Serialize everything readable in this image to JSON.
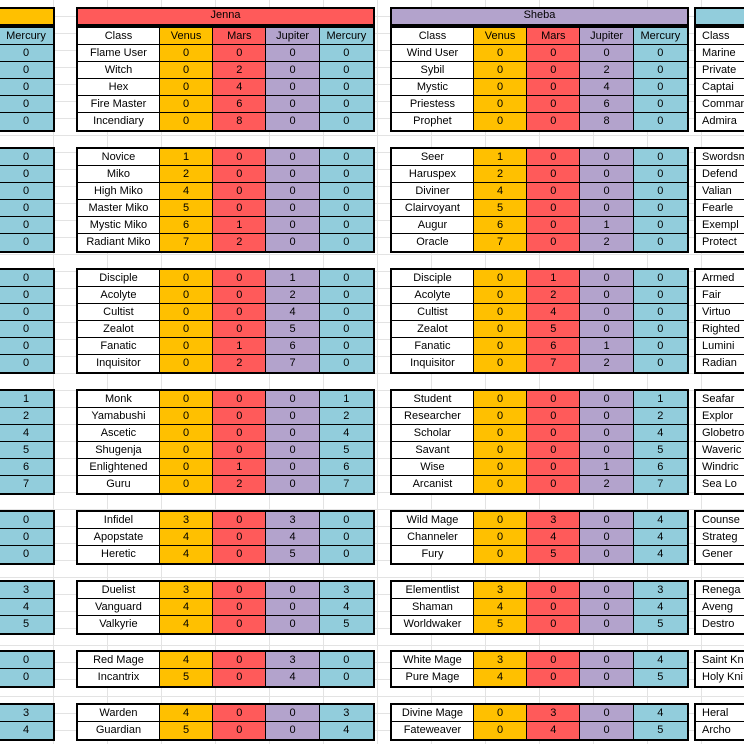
{
  "colors": {
    "venus": "#ffc000",
    "mars": "#ff5a5a",
    "jupiter": "#b3a3cc",
    "mercury": "#92cddc"
  },
  "headers": {
    "jenna": "Jenna",
    "sheba": "Sheba",
    "columns": [
      "Class",
      "Venus",
      "Mars",
      "Jupiter",
      "Mercury"
    ],
    "left_mercury": "Mercury",
    "right_class": "Class"
  },
  "left_mercury": [
    [
      "0",
      "0",
      "0",
      "0",
      "0"
    ],
    [
      "0",
      "0",
      "0",
      "0",
      "0",
      "0"
    ],
    [
      "0",
      "0",
      "0",
      "0",
      "0",
      "0"
    ],
    [
      "1",
      "2",
      "4",
      "5",
      "6",
      "7"
    ],
    [
      "0",
      "0",
      "0"
    ],
    [
      "3",
      "4",
      "5"
    ],
    [
      "0",
      "0"
    ],
    [
      "3",
      "4"
    ]
  ],
  "jenna": [
    [
      [
        "Flame User",
        "0",
        "0",
        "0",
        "0"
      ],
      [
        "Witch",
        "0",
        "2",
        "0",
        "0"
      ],
      [
        "Hex",
        "0",
        "4",
        "0",
        "0"
      ],
      [
        "Fire Master",
        "0",
        "6",
        "0",
        "0"
      ],
      [
        "Incendiary",
        "0",
        "8",
        "0",
        "0"
      ]
    ],
    [
      [
        "Novice",
        "1",
        "0",
        "0",
        "0"
      ],
      [
        "Miko",
        "2",
        "0",
        "0",
        "0"
      ],
      [
        "High Miko",
        "4",
        "0",
        "0",
        "0"
      ],
      [
        "Master Miko",
        "5",
        "0",
        "0",
        "0"
      ],
      [
        "Mystic Miko",
        "6",
        "1",
        "0",
        "0"
      ],
      [
        "Radiant Miko",
        "7",
        "2",
        "0",
        "0"
      ]
    ],
    [
      [
        "Disciple",
        "0",
        "0",
        "1",
        "0"
      ],
      [
        "Acolyte",
        "0",
        "0",
        "2",
        "0"
      ],
      [
        "Cultist",
        "0",
        "0",
        "4",
        "0"
      ],
      [
        "Zealot",
        "0",
        "0",
        "5",
        "0"
      ],
      [
        "Fanatic",
        "0",
        "1",
        "6",
        "0"
      ],
      [
        "Inquisitor",
        "0",
        "2",
        "7",
        "0"
      ]
    ],
    [
      [
        "Monk",
        "0",
        "0",
        "0",
        "1"
      ],
      [
        "Yamabushi",
        "0",
        "0",
        "0",
        "2"
      ],
      [
        "Ascetic",
        "0",
        "0",
        "0",
        "4"
      ],
      [
        "Shugenja",
        "0",
        "0",
        "0",
        "5"
      ],
      [
        "Enlightened",
        "0",
        "1",
        "0",
        "6"
      ],
      [
        "Guru",
        "0",
        "2",
        "0",
        "7"
      ]
    ],
    [
      [
        "Infidel",
        "3",
        "0",
        "3",
        "0"
      ],
      [
        "Apopstate",
        "4",
        "0",
        "4",
        "0"
      ],
      [
        "Heretic",
        "4",
        "0",
        "5",
        "0"
      ]
    ],
    [
      [
        "Duelist",
        "3",
        "0",
        "0",
        "3"
      ],
      [
        "Vanguard",
        "4",
        "0",
        "0",
        "4"
      ],
      [
        "Valkyrie",
        "4",
        "0",
        "0",
        "5"
      ]
    ],
    [
      [
        "Red Mage",
        "4",
        "0",
        "3",
        "0"
      ],
      [
        "Incantrix",
        "5",
        "0",
        "4",
        "0"
      ]
    ],
    [
      [
        "Warden",
        "4",
        "0",
        "0",
        "3"
      ],
      [
        "Guardian",
        "5",
        "0",
        "0",
        "4"
      ]
    ]
  ],
  "sheba": [
    [
      [
        "Wind User",
        "0",
        "0",
        "0",
        "0"
      ],
      [
        "Sybil",
        "0",
        "0",
        "2",
        "0"
      ],
      [
        "Mystic",
        "0",
        "0",
        "4",
        "0"
      ],
      [
        "Priestess",
        "0",
        "0",
        "6",
        "0"
      ],
      [
        "Prophet",
        "0",
        "0",
        "8",
        "0"
      ]
    ],
    [
      [
        "Seer",
        "1",
        "0",
        "0",
        "0"
      ],
      [
        "Haruspex",
        "2",
        "0",
        "0",
        "0"
      ],
      [
        "Diviner",
        "4",
        "0",
        "0",
        "0"
      ],
      [
        "Clairvoyant",
        "5",
        "0",
        "0",
        "0"
      ],
      [
        "Augur",
        "6",
        "0",
        "1",
        "0"
      ],
      [
        "Oracle",
        "7",
        "0",
        "2",
        "0"
      ]
    ],
    [
      [
        "Disciple",
        "0",
        "1",
        "0",
        "0"
      ],
      [
        "Acolyte",
        "0",
        "2",
        "0",
        "0"
      ],
      [
        "Cultist",
        "0",
        "4",
        "0",
        "0"
      ],
      [
        "Zealot",
        "0",
        "5",
        "0",
        "0"
      ],
      [
        "Fanatic",
        "0",
        "6",
        "1",
        "0"
      ],
      [
        "Inquisitor",
        "0",
        "7",
        "2",
        "0"
      ]
    ],
    [
      [
        "Student",
        "0",
        "0",
        "0",
        "1"
      ],
      [
        "Researcher",
        "0",
        "0",
        "0",
        "2"
      ],
      [
        "Scholar",
        "0",
        "0",
        "0",
        "4"
      ],
      [
        "Savant",
        "0",
        "0",
        "0",
        "5"
      ],
      [
        "Wise",
        "0",
        "0",
        "1",
        "6"
      ],
      [
        "Arcanist",
        "0",
        "0",
        "2",
        "7"
      ]
    ],
    [
      [
        "Wild Mage",
        "0",
        "3",
        "0",
        "4"
      ],
      [
        "Channeler",
        "0",
        "4",
        "0",
        "4"
      ],
      [
        "Fury",
        "0",
        "5",
        "0",
        "4"
      ]
    ],
    [
      [
        "Elementlist",
        "3",
        "0",
        "0",
        "3"
      ],
      [
        "Shaman",
        "4",
        "0",
        "0",
        "4"
      ],
      [
        "Worldwaker",
        "5",
        "0",
        "0",
        "5"
      ]
    ],
    [
      [
        "White Mage",
        "3",
        "0",
        "0",
        "4"
      ],
      [
        "Pure Mage",
        "4",
        "0",
        "0",
        "5"
      ]
    ],
    [
      [
        "Divine Mage",
        "0",
        "3",
        "0",
        "4"
      ],
      [
        "Fateweaver",
        "0",
        "4",
        "0",
        "5"
      ]
    ]
  ],
  "right_class": [
    [
      "Marine",
      "Private",
      "Captai",
      "Comman",
      "Admira"
    ],
    [
      "Swordsm",
      "Defend",
      "Valian",
      "Fearle",
      "Exempl",
      "Protect"
    ],
    [
      "Armed",
      "Fair",
      "Virtuo",
      "Righted",
      "Lumini",
      "Radian"
    ],
    [
      "Seafar",
      "Explor",
      "Globetro",
      "Waveric",
      "Windric",
      "Sea Lo"
    ],
    [
      "Counse",
      "Strateg",
      "Gener"
    ],
    [
      "Renega",
      "Aveng",
      "Destro"
    ],
    [
      "Saint Kni",
      "Holy Kni"
    ],
    [
      "Heral",
      "Archo"
    ]
  ]
}
